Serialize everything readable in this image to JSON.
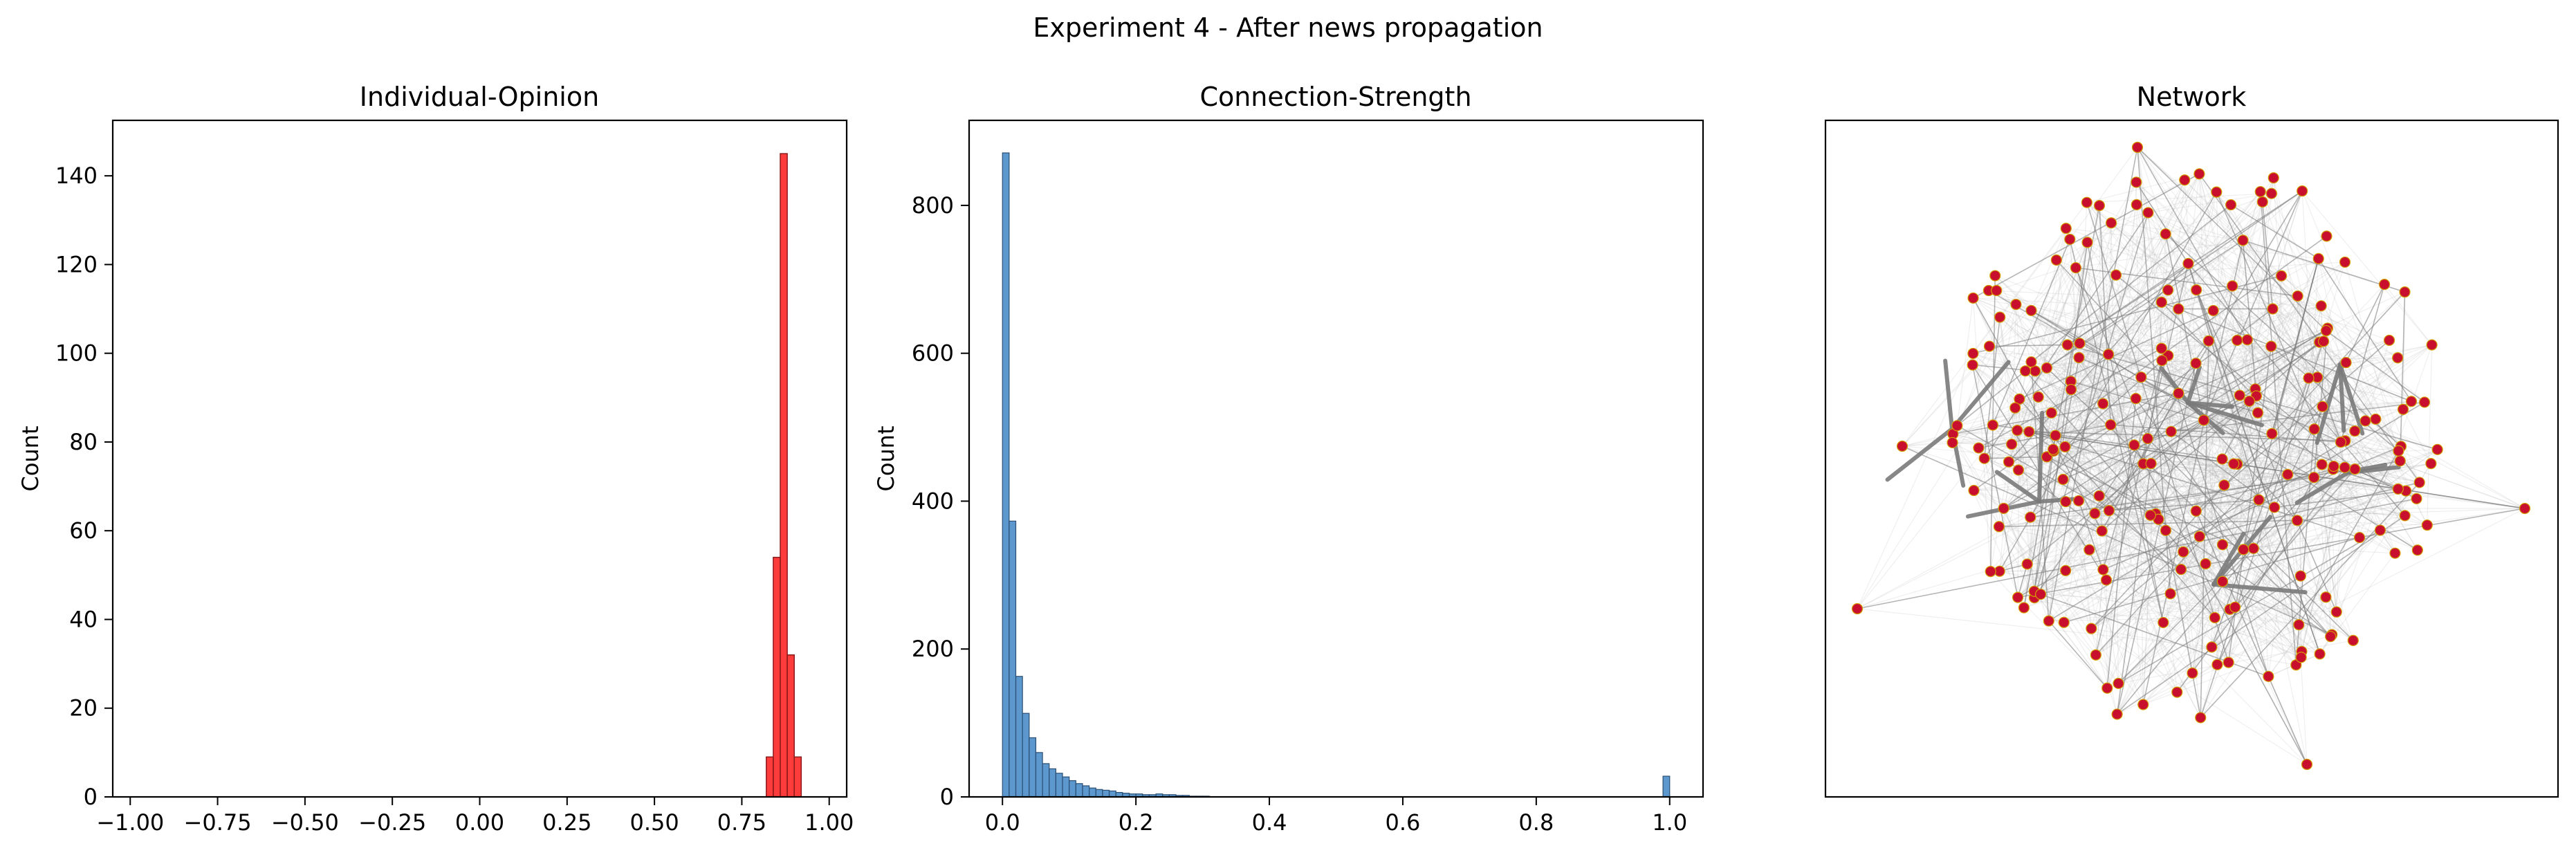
{
  "figure": {
    "suptitle": "Experiment 4 - After news propagation"
  },
  "chart_data": [
    {
      "type": "bar",
      "title": "Individual-Opinion",
      "xlabel": "",
      "ylabel": "Count",
      "xlim": [
        -1.05,
        1.05
      ],
      "ylim": [
        0,
        152.5
      ],
      "xticks": [
        -1.0,
        -0.75,
        -0.5,
        -0.25,
        0.0,
        0.25,
        0.5,
        0.75,
        1.0
      ],
      "xtick_labels": [
        "−1.00",
        "−0.75",
        "−0.50",
        "−0.25",
        "0.00",
        "0.25",
        "0.50",
        "0.75",
        "1.00"
      ],
      "yticks": [
        0,
        20,
        40,
        60,
        80,
        100,
        120,
        140
      ],
      "ytick_labels": [
        "0",
        "20",
        "40",
        "60",
        "80",
        "100",
        "120",
        "140"
      ],
      "bin_edges": [
        0.82,
        0.84,
        0.86,
        0.88,
        0.9,
        0.92
      ],
      "values": [
        9,
        54,
        145,
        32,
        9
      ],
      "color": "#ff1a1a",
      "edge_color": "#8b1a1a"
    },
    {
      "type": "bar",
      "title": "Connection-Strength",
      "xlabel": "",
      "ylabel": "Count",
      "xlim": [
        -0.05,
        1.05
      ],
      "ylim": [
        0,
        915
      ],
      "xticks": [
        0.0,
        0.2,
        0.4,
        0.6,
        0.8,
        1.0
      ],
      "xtick_labels": [
        "0.0",
        "0.2",
        "0.4",
        "0.6",
        "0.8",
        "1.0"
      ],
      "yticks": [
        0,
        200,
        400,
        600,
        800
      ],
      "ytick_labels": [
        "0",
        "200",
        "400",
        "600",
        "800"
      ],
      "bin_width": 0.01,
      "values": [
        871,
        373,
        163,
        113,
        80,
        60,
        45,
        38,
        32,
        27,
        22,
        18,
        15,
        12,
        10,
        9,
        8,
        6,
        5,
        4,
        4,
        3,
        3,
        4,
        3,
        3,
        2,
        2,
        1,
        1,
        1
      ],
      "spike": {
        "x": 0.99,
        "value": 28
      },
      "color": "#4a8cc8",
      "edge_color": "#2b4f74"
    },
    {
      "type": "network",
      "title": "Network",
      "node_color": "#c8102e",
      "node_edge_color": "#d4a000",
      "edge_color": "#7a7a7a"
    }
  ]
}
